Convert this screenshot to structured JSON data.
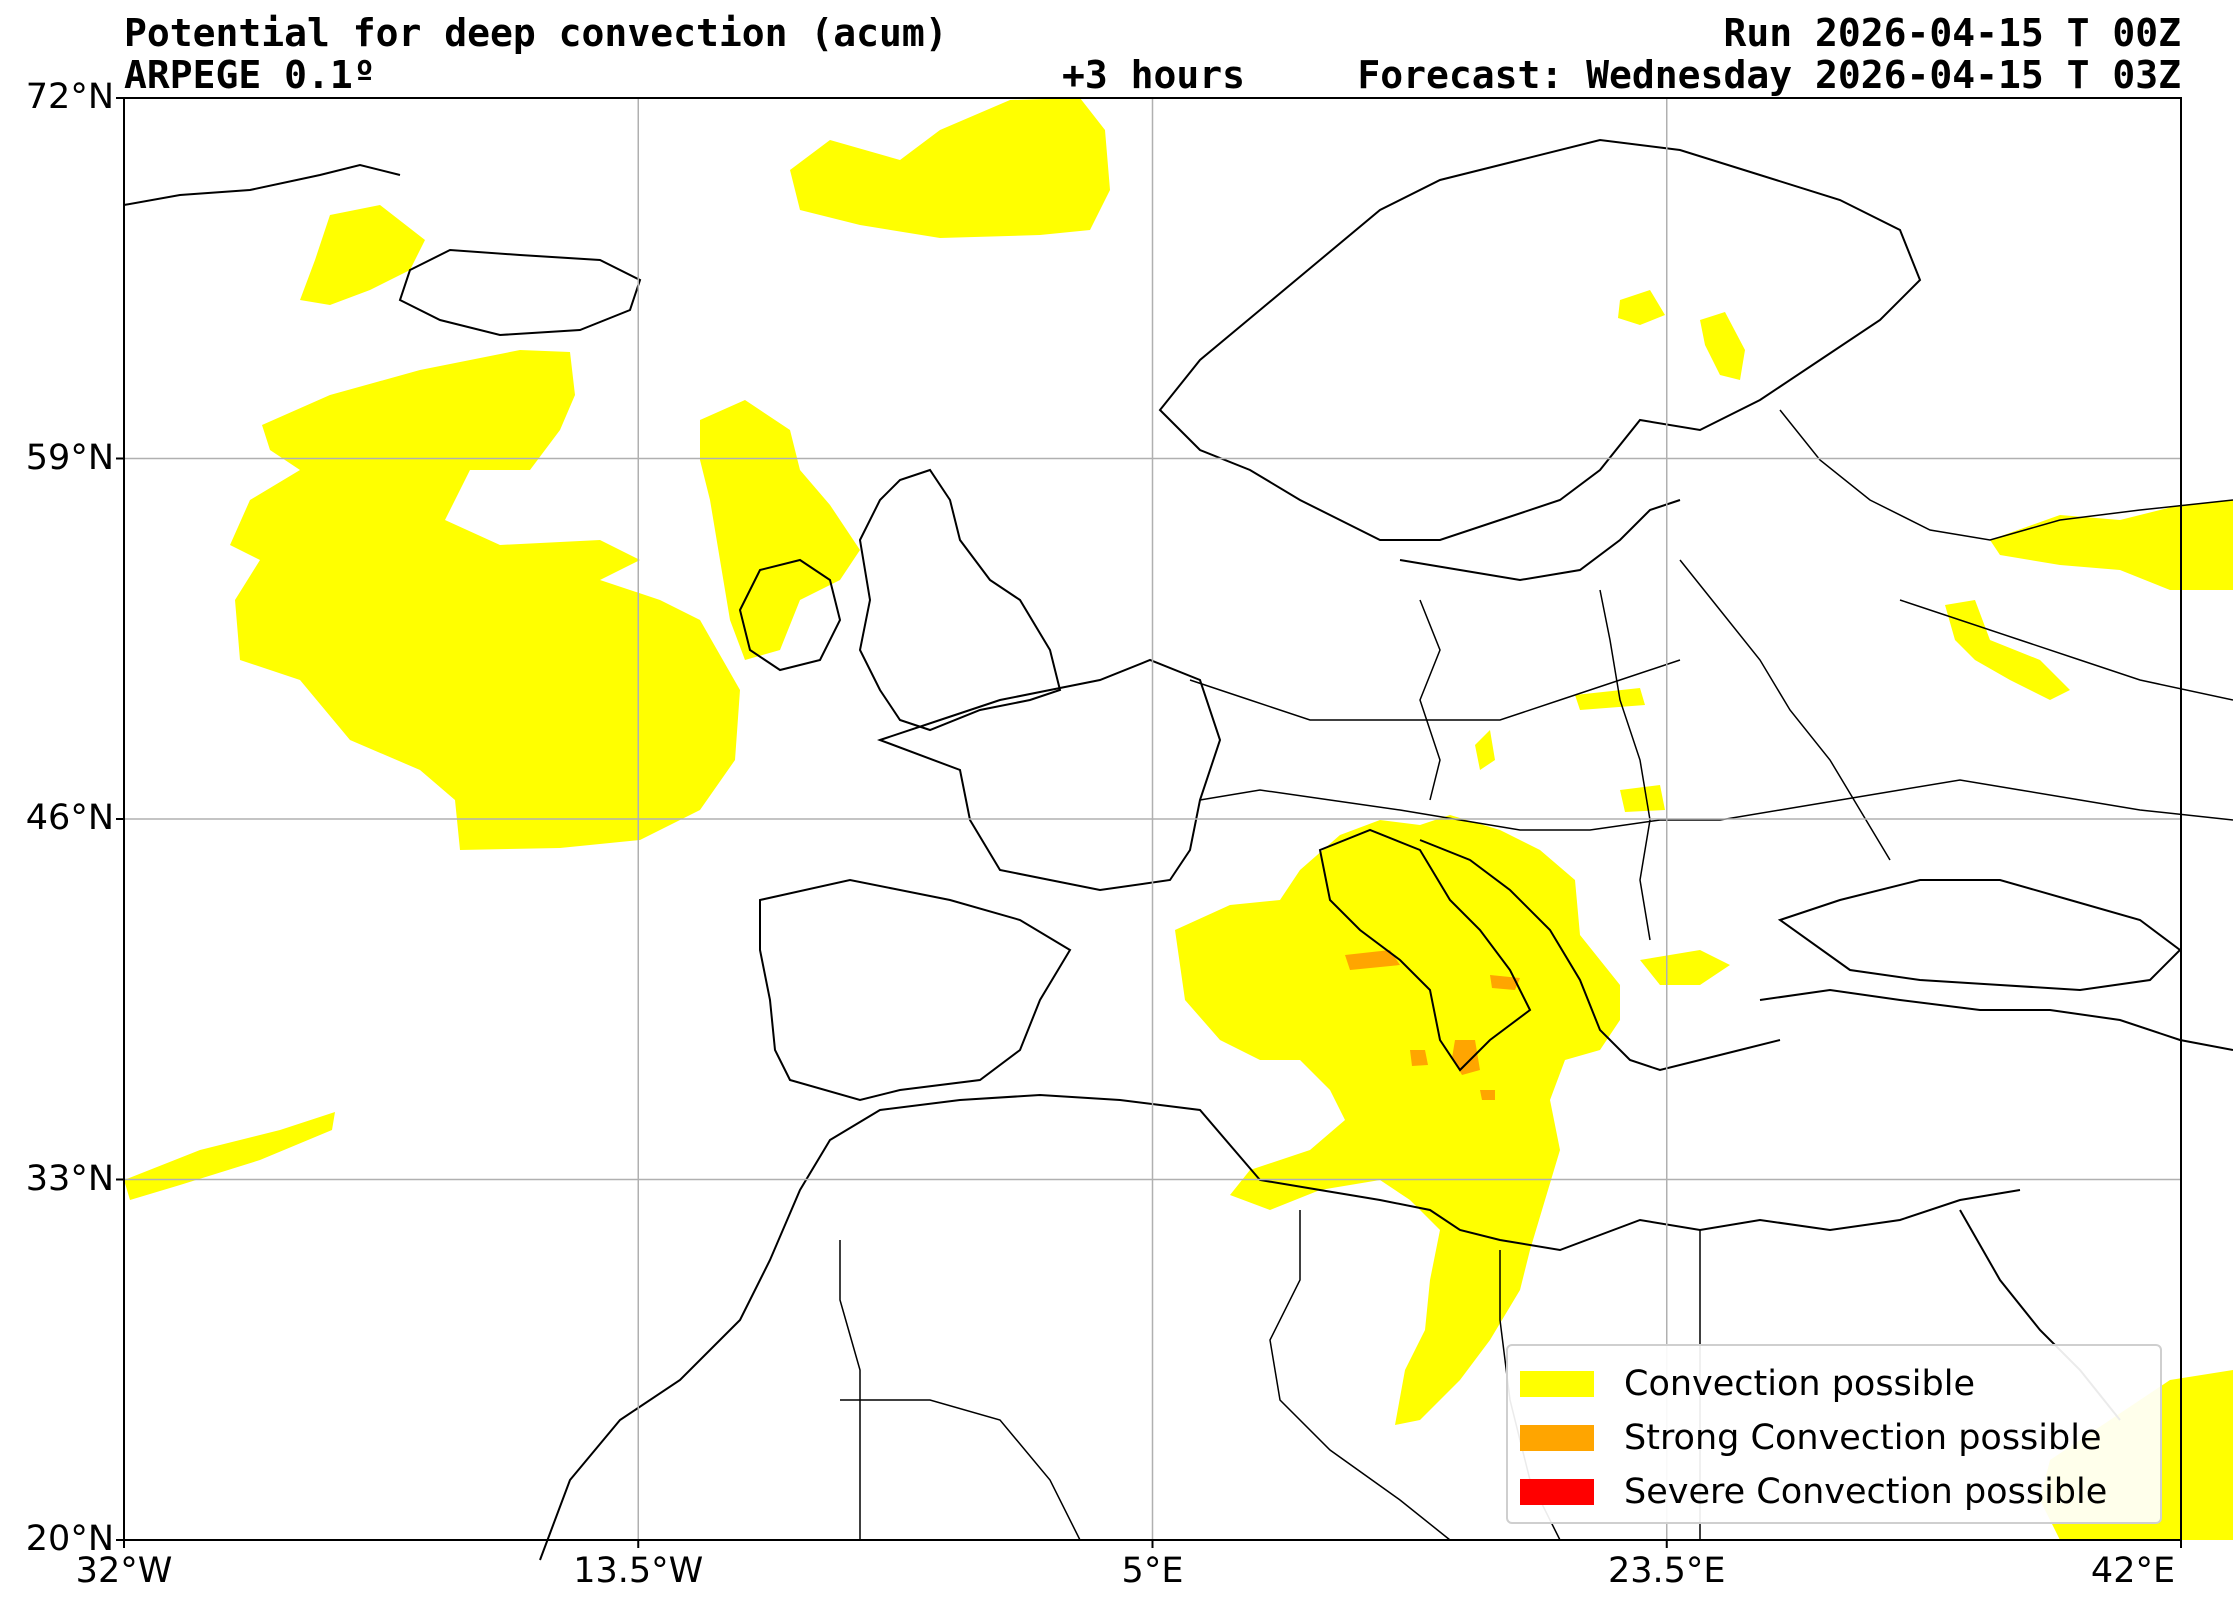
{
  "header": {
    "title": "Potential for deep convection (acum)",
    "model": "ARPEGE 0.1º",
    "run": "Run 2026-04-15 T 00Z",
    "lead": "+3 hours",
    "valid": "Forecast: Wednesday 2026-04-15 T 03Z"
  },
  "map": {
    "lon_range": [
      -32,
      42
    ],
    "lat_range": [
      20,
      72
    ],
    "grid": true,
    "lat_ticks": [
      {
        "value": 72,
        "label": "72°N"
      },
      {
        "value": 59,
        "label": "59°N"
      },
      {
        "value": 46,
        "label": "46°N"
      },
      {
        "value": 33,
        "label": "33°N"
      },
      {
        "value": 20,
        "label": "20°N"
      }
    ],
    "lon_ticks": [
      {
        "value": -32,
        "label": "32°W"
      },
      {
        "value": -13.5,
        "label": "13.5°W"
      },
      {
        "value": 5,
        "label": "5°E"
      },
      {
        "value": 23.5,
        "label": "23.5°E"
      },
      {
        "value": 42,
        "label": "42°E"
      }
    ]
  },
  "legend": {
    "placement": "bottom-right",
    "items": [
      {
        "label": "Convection possible",
        "color": "#ffff00"
      },
      {
        "label": "Strong Convection possible",
        "color": "#ffa500"
      },
      {
        "label": "Severe Convection possible",
        "color": "#ff0000"
      }
    ]
  }
}
